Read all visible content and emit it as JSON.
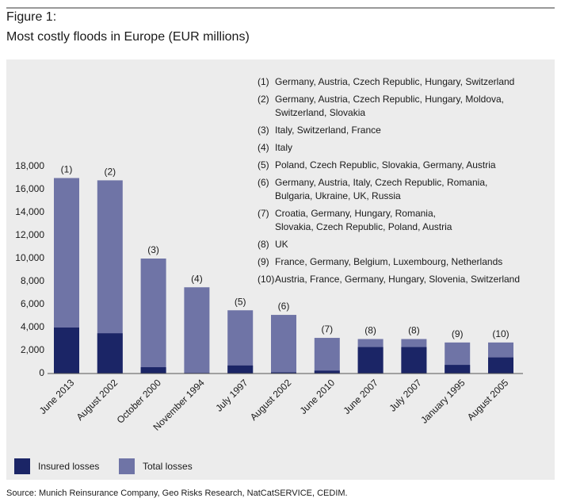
{
  "chart_data": {
    "type": "bar",
    "figure_label": "Figure 1:",
    "title": "Most costly floods in Europe (EUR millions)",
    "categories": [
      "June 2013",
      "August 2002",
      "October 2000",
      "November 1994",
      "July 1997",
      "August 2002",
      "June 2010",
      "June 2007",
      "July 2007",
      "January 1995",
      "August 2005"
    ],
    "bar_labels": [
      "(1)",
      "(2)",
      "(3)",
      "(4)",
      "(5)",
      "(6)",
      "(7)",
      "(8)",
      "(8)",
      "(9)",
      "(10)"
    ],
    "series": [
      {
        "name": "Insured losses",
        "color": "#1b2566",
        "values": [
          4000,
          3500,
          550,
          50,
          700,
          100,
          250,
          2300,
          2300,
          750,
          1400
        ]
      },
      {
        "name": "Total losses",
        "color": "#6f74a6",
        "values": [
          17000,
          16800,
          10000,
          7500,
          5500,
          5100,
          3100,
          3000,
          3000,
          2700,
          2700
        ]
      }
    ],
    "overlaid": true,
    "ylim": [
      0,
      18000
    ],
    "yticks": [
      0,
      {
        "value": 2000,
        "label": "2,000"
      },
      {
        "value": 4000,
        "label": "4,000"
      },
      {
        "value": 6000,
        "label": "6,000"
      },
      {
        "value": 8000,
        "label": "8,000"
      },
      {
        "value": 10000,
        "label": "10,000"
      },
      {
        "value": 12000,
        "label": "12,000"
      },
      {
        "value": 14000,
        "label": "14,000"
      },
      {
        "value": 16000,
        "label": "16,000"
      },
      {
        "value": 18000,
        "label": "18,000"
      }
    ],
    "notes": [
      {
        "label": "(1)",
        "lines": [
          "Germany, Austria, Czech Republic, Hungary, Switzerland"
        ]
      },
      {
        "label": "(2)",
        "lines": [
          "Germany, Austria, Czech Republic, Hungary, Moldova,",
          "Switzerland, Slovakia"
        ]
      },
      {
        "label": "(3)",
        "lines": [
          "Italy, Switzerland, France"
        ]
      },
      {
        "label": "(4)",
        "lines": [
          "Italy"
        ]
      },
      {
        "label": "(5)",
        "lines": [
          "Poland, Czech Republic, Slovakia, Germany, Austria"
        ]
      },
      {
        "label": "(6)",
        "lines": [
          "Germany, Austria, Italy, Czech Republic, Romania,",
          "Bulgaria, Ukraine, UK, Russia"
        ]
      },
      {
        "label": "(7)",
        "lines": [
          "Croatia, Germany, Hungary, Romania,",
          "Slovakia, Czech Republic, Poland, Austria"
        ]
      },
      {
        "label": "(8)",
        "lines": [
          "UK"
        ]
      },
      {
        "label": "(9)",
        "lines": [
          "France, Germany, Belgium, Luxembourg, Netherlands"
        ]
      },
      {
        "label": "(10)",
        "lines": [
          "Austria, France, Germany, Hungary, Slovenia, Switzerland"
        ]
      }
    ],
    "source": "Source: Munich Reinsurance Company, Geo Risks Research, NatCatSERVICE, CEDIM."
  }
}
